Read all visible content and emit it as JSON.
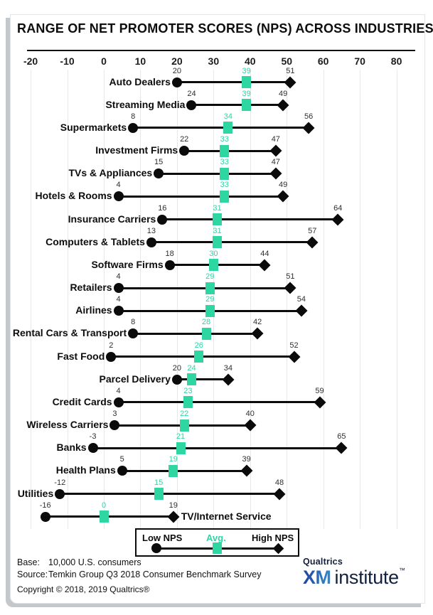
{
  "title": "RANGE OF NET PROMOTER SCORES (NPS) ACROSS INDUSTRIES",
  "colors": {
    "avg": "#2ed6a2",
    "marker": "#0b0b0b",
    "gridline": "#e6e9eb"
  },
  "chart_data": {
    "type": "dumbbell-range",
    "title": "RANGE OF NET PROMOTER SCORES (NPS) ACROSS INDUSTRIES",
    "xlim": [
      -20,
      80
    ],
    "x_ticks": [
      -20,
      -10,
      0,
      10,
      20,
      30,
      40,
      50,
      60,
      70,
      80
    ],
    "grid": "vertical",
    "legend_position": "bottom",
    "series_meaning": {
      "low": "Low NPS",
      "avg": "Avg.",
      "high": "High NPS"
    },
    "industries": [
      {
        "label": "Auto Dealers",
        "low": 20,
        "avg": 39,
        "high": 51,
        "label_side": "left"
      },
      {
        "label": "Streaming Media",
        "low": 24,
        "avg": 39,
        "high": 49,
        "label_side": "left"
      },
      {
        "label": "Supermarkets",
        "low": 8,
        "avg": 34,
        "high": 56,
        "label_side": "left"
      },
      {
        "label": "Investment Firms",
        "low": 22,
        "avg": 33,
        "high": 47,
        "label_side": "left"
      },
      {
        "label": "TVs & Appliances",
        "low": 15,
        "avg": 33,
        "high": 47,
        "label_side": "left"
      },
      {
        "label": "Hotels & Rooms",
        "low": 4,
        "avg": 33,
        "high": 49,
        "label_side": "left"
      },
      {
        "label": "Insurance Carriers",
        "low": 16,
        "avg": 31,
        "high": 64,
        "label_side": "left"
      },
      {
        "label": "Computers & Tablets",
        "low": 13,
        "avg": 31,
        "high": 57,
        "label_side": "left"
      },
      {
        "label": "Software Firms",
        "low": 18,
        "avg": 30,
        "high": 44,
        "label_side": "left"
      },
      {
        "label": "Retailers",
        "low": 4,
        "avg": 29,
        "high": 51,
        "label_side": "left"
      },
      {
        "label": "Airlines",
        "low": 4,
        "avg": 29,
        "high": 54,
        "label_side": "left"
      },
      {
        "label": "Rental Cars & Transport",
        "low": 8,
        "avg": 28,
        "high": 42,
        "label_side": "left"
      },
      {
        "label": "Fast Food",
        "low": 2,
        "avg": 26,
        "high": 52,
        "label_side": "left"
      },
      {
        "label": "Parcel Delivery",
        "low": 20,
        "avg": 24,
        "high": 34,
        "label_side": "left"
      },
      {
        "label": "Credit Cards",
        "low": 4,
        "avg": 23,
        "high": 59,
        "label_side": "left"
      },
      {
        "label": "Wireless Carriers",
        "low": 3,
        "avg": 22,
        "high": 40,
        "label_side": "left"
      },
      {
        "label": "Banks",
        "low": -3,
        "avg": 21,
        "high": 65,
        "label_side": "left"
      },
      {
        "label": "Health Plans",
        "low": 5,
        "avg": 19,
        "high": 39,
        "label_side": "left"
      },
      {
        "label": "Utilities",
        "low": -12,
        "avg": 15,
        "high": 48,
        "label_side": "left"
      },
      {
        "label": "TV/Internet Service",
        "low": -16,
        "avg": 0,
        "high": 19,
        "label_side": "right"
      }
    ]
  },
  "legend": {
    "low_label": "Low NPS",
    "avg_label": "Avg.",
    "high_label": "High NPS",
    "low_icon": "circle-icon",
    "avg_icon": "square-icon",
    "high_icon": "diamond-icon"
  },
  "footer": {
    "base_label": "Base:",
    "base_value": "10,000 U.S. consumers",
    "source_label": "Source:",
    "source_value": "Temkin Group Q3 2018 Consumer Benchmark Survey",
    "copyright": "Copyright © 2018, 2019 Qualtrics®"
  },
  "logo": {
    "brand": "Qualtrics",
    "xm": "XM",
    "institute": "institute",
    "tm": "™"
  }
}
